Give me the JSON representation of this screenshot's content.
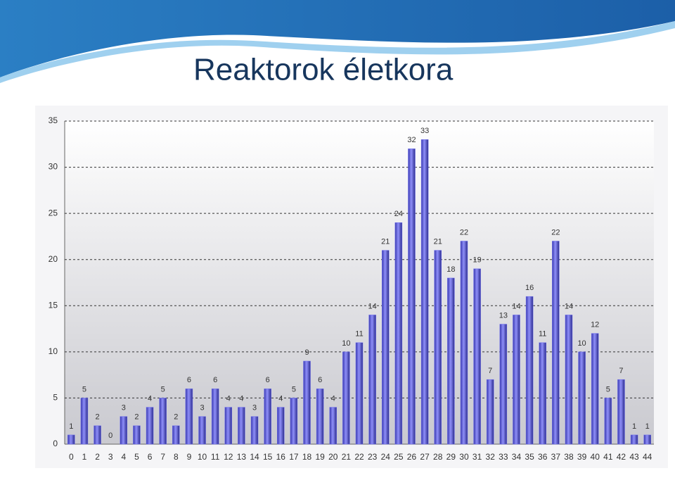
{
  "chart_data": {
    "type": "bar",
    "title": "Reaktorok életkora",
    "categories": [
      0,
      1,
      2,
      3,
      4,
      5,
      6,
      7,
      8,
      9,
      10,
      11,
      12,
      13,
      14,
      15,
      16,
      17,
      18,
      19,
      20,
      21,
      22,
      23,
      24,
      25,
      26,
      27,
      28,
      29,
      30,
      31,
      32,
      33,
      34,
      35,
      36,
      37,
      38,
      39,
      40,
      41,
      42,
      43,
      44
    ],
    "values": [
      1,
      5,
      2,
      0,
      3,
      2,
      4,
      5,
      2,
      6,
      3,
      6,
      4,
      4,
      3,
      6,
      4,
      5,
      9,
      6,
      4,
      10,
      11,
      14,
      21,
      24,
      32,
      33,
      21,
      18,
      22,
      19,
      7,
      13,
      14,
      16,
      11,
      22,
      14,
      10,
      12,
      5,
      7,
      1,
      1
    ],
    "color": "#6f6ff0",
    "ylim": [
      0,
      35
    ],
    "yticks": [
      0,
      5,
      10,
      15,
      20,
      25,
      30,
      35
    ],
    "grid": true
  }
}
